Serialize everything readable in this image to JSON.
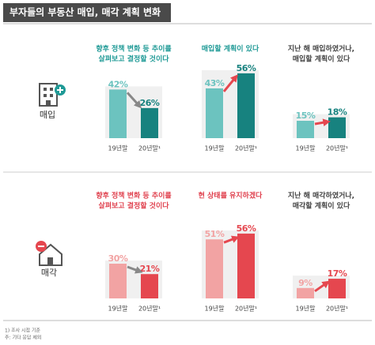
{
  "title": "부자들의 부동산 매입, 매각 계획 변화",
  "row_labels": [
    "매입",
    "매각"
  ],
  "footnotes": [
    "1) 조사 시점 기준",
    "주: 기타 응답 제외"
  ],
  "chart_data": [
    {
      "type": "bar",
      "title": [
        "향후 정책 변화 등 추이를",
        "살펴보고 결정할 것이다"
      ],
      "title_color": "#1f9a96",
      "categories": [
        "19년말",
        "20년말¹"
      ],
      "values": [
        42,
        26
      ],
      "value_labels": [
        "42%",
        "26%"
      ],
      "colors": [
        "#6cc3bf",
        "#17827f"
      ],
      "ylim": [
        0,
        60
      ]
    },
    {
      "type": "bar",
      "title": [
        "매입할 계획이 있다"
      ],
      "title_color": "#1f9a96",
      "categories": [
        "19년말",
        "20년말¹"
      ],
      "values": [
        43,
        56
      ],
      "value_labels": [
        "43%",
        "56%"
      ],
      "colors": [
        "#6cc3bf",
        "#17827f"
      ],
      "ylim": [
        0,
        60
      ]
    },
    {
      "type": "bar",
      "title": [
        "지난 해 매입하였거나,",
        "매입할 계획이 있다"
      ],
      "title_color": "#444444",
      "categories": [
        "19년말",
        "20년말¹"
      ],
      "values": [
        15,
        18
      ],
      "value_labels": [
        "15%",
        "18%"
      ],
      "colors": [
        "#6cc3bf",
        "#17827f"
      ],
      "ylim": [
        0,
        60
      ]
    },
    {
      "type": "bar",
      "title": [
        "향후 정책 변화 등 추이를",
        "살펴보고 결정할 것이다"
      ],
      "title_color": "#e0424f",
      "categories": [
        "19년말",
        "20년말¹"
      ],
      "values": [
        30,
        21
      ],
      "value_labels": [
        "30%",
        "21%"
      ],
      "colors": [
        "#f2a3a3",
        "#e5474f"
      ],
      "ylim": [
        0,
        60
      ]
    },
    {
      "type": "bar",
      "title": [
        "현 상태를 유지하겠다"
      ],
      "title_color": "#e0424f",
      "categories": [
        "19년말",
        "20년말¹"
      ],
      "values": [
        51,
        56
      ],
      "value_labels": [
        "51%",
        "56%"
      ],
      "colors": [
        "#f2a3a3",
        "#e5474f"
      ],
      "ylim": [
        0,
        60
      ]
    },
    {
      "type": "bar",
      "title": [
        "지난 해 매각하였거나,",
        "매각할 계획이 있다"
      ],
      "title_color": "#444444",
      "categories": [
        "19년말",
        "20년말¹"
      ],
      "values": [
        9,
        17
      ],
      "value_labels": [
        "9%",
        "17%"
      ],
      "colors": [
        "#f2a3a3",
        "#e5474f"
      ],
      "ylim": [
        0,
        60
      ]
    }
  ]
}
